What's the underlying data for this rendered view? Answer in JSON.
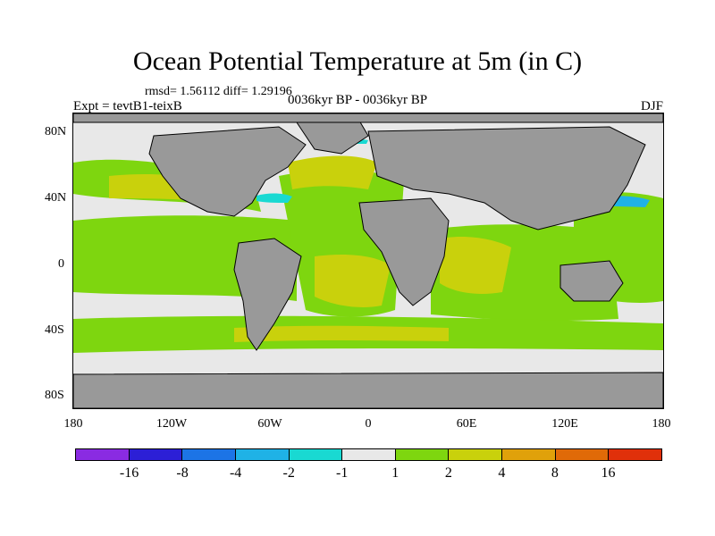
{
  "title": "Ocean Potential Temperature at 5m (in C)",
  "stats": "rmsd= 1.56112 diff= 1.29196",
  "experiment": "Expt = tevtB1-teixB",
  "period": "0036kyr BP - 0036kyr BP",
  "season": "DJF",
  "lat_ticks": [
    "80N",
    "40N",
    "0",
    "40S",
    "80S"
  ],
  "lon_ticks": [
    "180",
    "120W",
    "60W",
    "0",
    "60E",
    "120E",
    "180"
  ],
  "colorbar": {
    "colors": [
      "#8a2be2",
      "#2c1fd6",
      "#1c74e6",
      "#1fb2e6",
      "#19d9d2",
      "#e8e8e8",
      "#7ed60f",
      "#c9d10c",
      "#e0a10a",
      "#e06a08",
      "#e0300a"
    ],
    "labels": [
      "-16",
      "-8",
      "-4",
      "-2",
      "-1",
      "1",
      "2",
      "4",
      "8",
      "16"
    ]
  }
}
